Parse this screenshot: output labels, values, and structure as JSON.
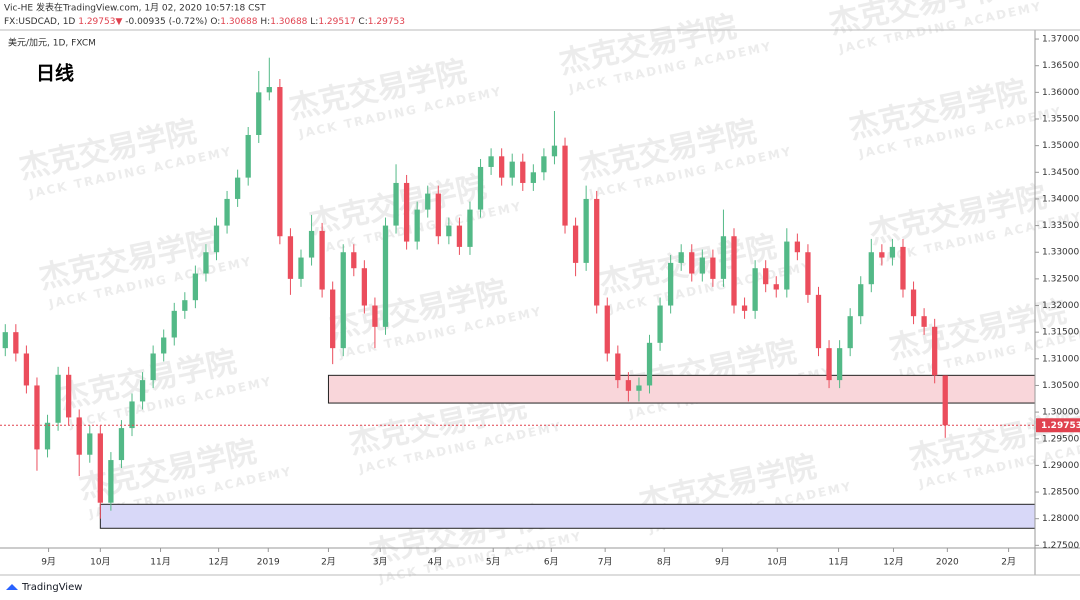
{
  "header": {
    "line1": "Vic-HE 发表在TradingView.com, 1月 02, 2020 10:57:18 CST",
    "symbol": "FX:USDCAD, 1D",
    "change": "-0.00935 (-0.72%)",
    "o": "O:",
    "h": "H:",
    "l": "L:",
    "c": "C:"
  },
  "legend": "美元/加元, 1D, FXCM",
  "label": "日线",
  "watermark": {
    "title": "杰克交易学院",
    "subtitle": "JACK TRADING ACADEMY"
  },
  "footer": "TradingView",
  "chart_data": {
    "type": "candlestick",
    "open": [
      1.312,
      1.315,
      1.311,
      1.305,
      1.293,
      1.298,
      1.307,
      1.299,
      1.292,
      1.296,
      1.283,
      1.291,
      1.297,
      1.302,
      1.306,
      1.311,
      1.314,
      1.319,
      1.321,
      1.326,
      1.33,
      1.335,
      1.34,
      1.344,
      1.352,
      1.36,
      1.361,
      1.333,
      1.325,
      1.329,
      1.334,
      1.323,
      1.312,
      1.33,
      1.327,
      1.32,
      1.316,
      1.335,
      1.343,
      1.332,
      1.338,
      1.341,
      1.333,
      1.335,
      1.331,
      1.338,
      1.346,
      1.348,
      1.344,
      1.347,
      1.343,
      1.345,
      1.348,
      1.35,
      1.335,
      1.328,
      1.34,
      1.32,
      1.311,
      1.306,
      1.304,
      1.305,
      1.313,
      1.32,
      1.328,
      1.33,
      1.326,
      1.329,
      1.325,
      1.333,
      1.32,
      1.319,
      1.327,
      1.324,
      1.323,
      1.332,
      1.33,
      1.322,
      1.312,
      1.306,
      1.312,
      1.318,
      1.324,
      1.33,
      1.329,
      1.331,
      1.323,
      1.318,
      1.316,
      1.30688
    ],
    "high": [
      1.3165,
      1.3165,
      1.3125,
      1.3065,
      1.2995,
      1.3085,
      1.3085,
      1.3005,
      1.2975,
      1.2975,
      1.2925,
      1.2985,
      1.3035,
      1.3075,
      1.3125,
      1.3155,
      1.3205,
      1.3225,
      1.3275,
      1.3315,
      1.3365,
      1.3415,
      1.3455,
      1.3535,
      1.364,
      1.3665,
      1.3625,
      1.3345,
      1.3305,
      1.337,
      1.3355,
      1.3245,
      1.3315,
      1.3315,
      1.3285,
      1.3215,
      1.3365,
      1.3465,
      1.3445,
      1.3395,
      1.3425,
      1.3425,
      1.3365,
      1.3365,
      1.3395,
      1.3475,
      1.3495,
      1.3495,
      1.3485,
      1.3485,
      1.3465,
      1.3495,
      1.3565,
      1.3515,
      1.3365,
      1.3425,
      1.3415,
      1.3215,
      1.3125,
      1.3075,
      1.3065,
      1.3145,
      1.3215,
      1.3295,
      1.3315,
      1.3315,
      1.3305,
      1.3305,
      1.338,
      1.3345,
      1.3215,
      1.3285,
      1.3285,
      1.3255,
      1.3345,
      1.3335,
      1.3315,
      1.3235,
      1.3135,
      1.3135,
      1.3195,
      1.3255,
      1.3325,
      1.3315,
      1.3325,
      1.3325,
      1.3245,
      1.3195,
      1.3175,
      1.30688
    ],
    "low": [
      1.3105,
      1.3095,
      1.3035,
      1.289,
      1.2915,
      1.2965,
      1.2975,
      1.288,
      1.2905,
      1.28,
      1.2815,
      1.2895,
      1.2955,
      1.3005,
      1.3045,
      1.3095,
      1.3125,
      1.3175,
      1.3195,
      1.3245,
      1.3285,
      1.3335,
      1.3385,
      1.3425,
      1.3505,
      1.3585,
      1.3315,
      1.322,
      1.3235,
      1.3275,
      1.3215,
      1.309,
      1.3105,
      1.3255,
      1.3185,
      1.312,
      1.3145,
      1.3335,
      1.3305,
      1.3305,
      1.3365,
      1.3315,
      1.3315,
      1.3295,
      1.3295,
      1.3365,
      1.3445,
      1.3425,
      1.3425,
      1.3415,
      1.3415,
      1.3435,
      1.3465,
      1.3335,
      1.3255,
      1.3265,
      1.3185,
      1.3095,
      1.3045,
      1.302,
      1.302,
      1.3035,
      1.3115,
      1.3185,
      1.3265,
      1.3245,
      1.3245,
      1.3235,
      1.3235,
      1.3185,
      1.3175,
      1.3175,
      1.3225,
      1.3215,
      1.3215,
      1.3285,
      1.3205,
      1.3105,
      1.3045,
      1.3045,
      1.3105,
      1.3165,
      1.3225,
      1.3275,
      1.3275,
      1.3215,
      1.3165,
      1.3145,
      1.3054,
      1.29517
    ],
    "close": [
      1.315,
      1.311,
      1.305,
      1.293,
      1.298,
      1.307,
      1.299,
      1.292,
      1.296,
      1.283,
      1.291,
      1.297,
      1.302,
      1.306,
      1.311,
      1.314,
      1.319,
      1.321,
      1.326,
      1.33,
      1.335,
      1.34,
      1.344,
      1.352,
      1.36,
      1.361,
      1.333,
      1.325,
      1.329,
      1.334,
      1.323,
      1.312,
      1.33,
      1.327,
      1.32,
      1.316,
      1.335,
      1.343,
      1.332,
      1.338,
      1.341,
      1.333,
      1.335,
      1.331,
      1.338,
      1.346,
      1.348,
      1.344,
      1.347,
      1.343,
      1.345,
      1.348,
      1.35,
      1.335,
      1.328,
      1.34,
      1.32,
      1.311,
      1.306,
      1.304,
      1.305,
      1.313,
      1.32,
      1.328,
      1.33,
      1.326,
      1.329,
      1.325,
      1.333,
      1.32,
      1.319,
      1.327,
      1.324,
      1.323,
      1.332,
      1.33,
      1.322,
      1.312,
      1.306,
      1.312,
      1.318,
      1.324,
      1.33,
      1.329,
      1.331,
      1.323,
      1.318,
      1.316,
      1.3069,
      1.29753
    ],
    "up_color": "#53b987",
    "down_color": "#eb4d5c",
    "xlim": [
      -0.5,
      97.5
    ],
    "xticks": [
      {
        "value": 4.1,
        "label": "9月"
      },
      {
        "value": 9.0,
        "label": "10月"
      },
      {
        "value": 14.7,
        "label": "11月"
      },
      {
        "value": 20.2,
        "label": "12月"
      },
      {
        "value": 24.9,
        "label": "2019"
      },
      {
        "value": 30.6,
        "label": "2月"
      },
      {
        "value": 35.5,
        "label": "3月"
      },
      {
        "value": 40.7,
        "label": "4月"
      },
      {
        "value": 46.2,
        "label": "5月"
      },
      {
        "value": 51.7,
        "label": "6月"
      },
      {
        "value": 56.8,
        "label": "7月"
      },
      {
        "value": 62.4,
        "label": "8月"
      },
      {
        "value": 67.9,
        "label": "9月"
      },
      {
        "value": 73.1,
        "label": "10月"
      },
      {
        "value": 78.9,
        "label": "11月"
      },
      {
        "value": 84.1,
        "label": "12月"
      },
      {
        "value": 89.2,
        "label": "2020"
      },
      {
        "value": 95.0,
        "label": "2月"
      }
    ],
    "ylim": [
      1.2745,
      1.3717
    ],
    "yticks": [
      {
        "value": 1.275,
        "label": "1.27500"
      },
      {
        "value": 1.28,
        "label": "1.28000"
      },
      {
        "value": 1.285,
        "label": "1.28500"
      },
      {
        "value": 1.29,
        "label": "1.29000"
      },
      {
        "value": 1.295,
        "label": "1.29500"
      },
      {
        "value": 1.3,
        "label": "1.30000"
      },
      {
        "value": 1.305,
        "label": "1.30500"
      },
      {
        "value": 1.31,
        "label": "1.31000"
      },
      {
        "value": 1.315,
        "label": "1.31500"
      },
      {
        "value": 1.32,
        "label": "1.32000"
      },
      {
        "value": 1.325,
        "label": "1.32500"
      },
      {
        "value": 1.33,
        "label": "1.33000"
      },
      {
        "value": 1.335,
        "label": "1.33500"
      },
      {
        "value": 1.34,
        "label": "1.34000"
      },
      {
        "value": 1.345,
        "label": "1.34500"
      },
      {
        "value": 1.35,
        "label": "1.35000"
      },
      {
        "value": 1.355,
        "label": "1.35500"
      },
      {
        "value": 1.36,
        "label": "1.36000"
      },
      {
        "value": 1.365,
        "label": "1.36500"
      },
      {
        "value": 1.37,
        "label": "1.37000"
      }
    ],
    "zones": [
      {
        "from": 30.6,
        "to": 97.5,
        "top": 1.3069,
        "bottom": 1.3017,
        "color": "#f9d6da"
      },
      {
        "from": 9.0,
        "to": 97.5,
        "top": 1.2827,
        "bottom": 1.2782,
        "color": "#d8d8f8"
      }
    ],
    "last_line_color": "#e0424f"
  }
}
